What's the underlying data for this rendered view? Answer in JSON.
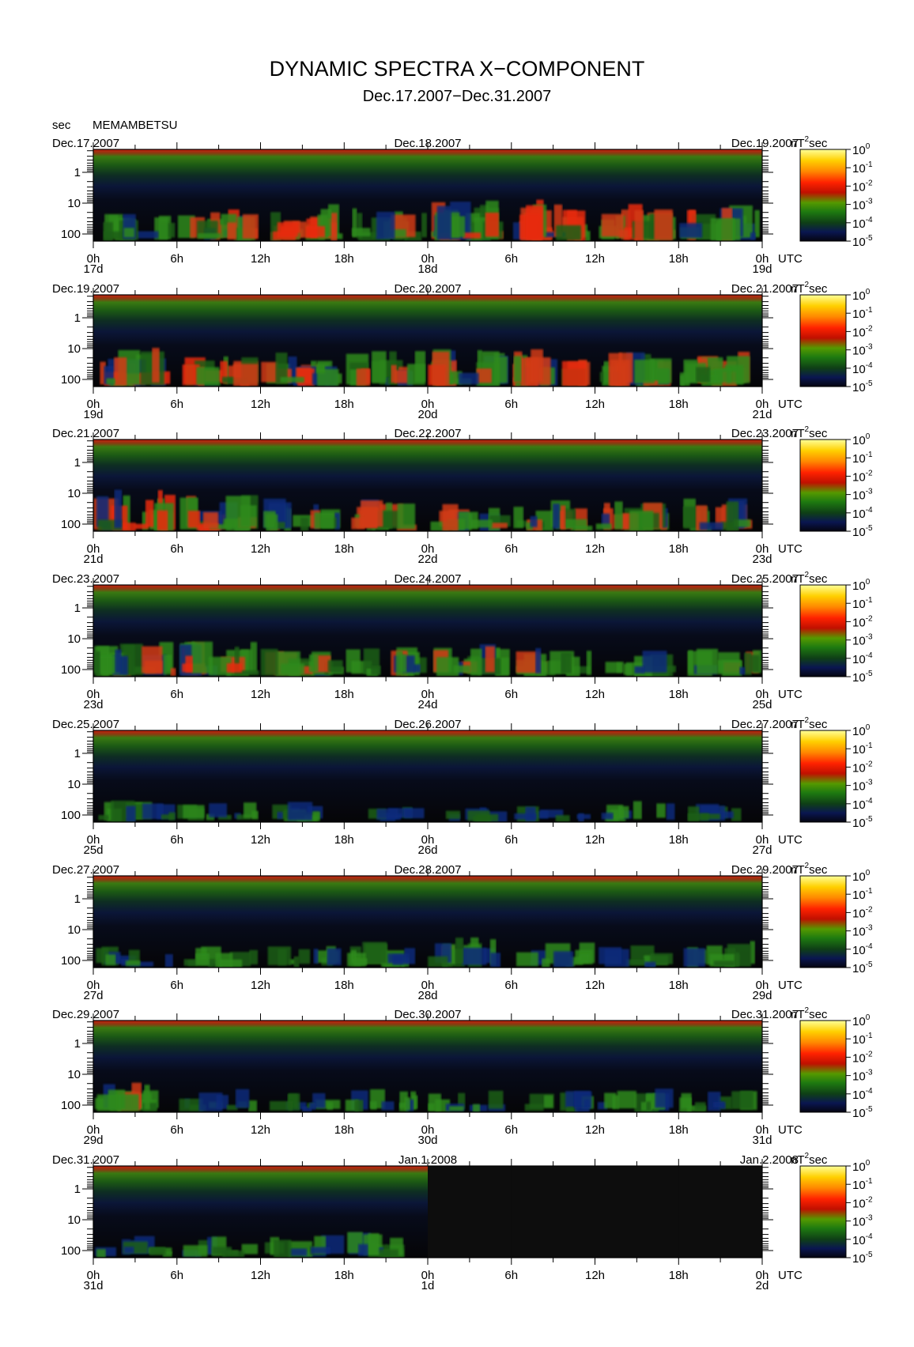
{
  "header": {
    "title": "DYNAMIC SPECTRA X−COMPONENT",
    "subtitle": "Dec.17.2007−Dec.31.2007",
    "y_unit": "sec",
    "station": "MEMAMBETSU"
  },
  "colorbar": {
    "unit_base": "nT",
    "unit_exp": "2",
    "unit_suffix": "sec",
    "ticks": [
      {
        "exp": "0",
        "value": 1
      },
      {
        "exp": "-1",
        "value": 0.1
      },
      {
        "exp": "-2",
        "value": 0.01
      },
      {
        "exp": "-3",
        "value": 0.001
      },
      {
        "exp": "-4",
        "value": 0.0001
      },
      {
        "exp": "-5",
        "value": 1e-05
      }
    ],
    "colors": [
      "#ffff99",
      "#ffd000",
      "#ff8800",
      "#ff2200",
      "#cc1100",
      "#559900",
      "#1e7a10",
      "#0f3f16",
      "#0a1650",
      "#050510"
    ]
  },
  "chart_data": {
    "type": "heatmap",
    "title": "DYNAMIC SPECTRA X−COMPONENT",
    "subtitle": "Dec.17.2007−Dec.31.2007",
    "ylabel": "sec",
    "y_scale": "log",
    "y_ticks": [
      "1",
      "10",
      "100"
    ],
    "x_tick_labels": [
      "0h",
      "6h",
      "12h",
      "18h",
      "0h",
      "6h",
      "12h",
      "18h",
      "0h"
    ],
    "x_tz_label": "UTC",
    "colorbar_unit": "nT²sec",
    "panels": [
      {
        "left_date": "Dec.17.2007",
        "mid_date": "Dec.18.2007",
        "right_date": "Dec.19.2007",
        "days": [
          "17d",
          "18d",
          "19d"
        ],
        "activity": [
          5,
          7,
          8,
          6,
          9,
          9,
          7,
          8
        ]
      },
      {
        "left_date": "Dec.19.2007",
        "mid_date": "Dec.20.2007",
        "right_date": "Dec.21.2007",
        "days": [
          "19d",
          "20d",
          "21d"
        ],
        "activity": [
          8,
          7,
          7,
          7,
          8,
          7,
          7,
          7
        ]
      },
      {
        "left_date": "Dec.21.2007",
        "mid_date": "Dec.22.2007",
        "right_date": "Dec.23.2007",
        "days": [
          "21d",
          "22d",
          "23d"
        ],
        "activity": [
          9,
          8,
          6,
          6,
          6,
          6,
          6,
          6
        ]
      },
      {
        "left_date": "Dec.23.2007",
        "mid_date": "Dec.24.2007",
        "right_date": "Dec.25.2007",
        "days": [
          "23d",
          "24d",
          "25d"
        ],
        "activity": [
          7,
          7,
          6,
          5,
          6,
          5,
          4,
          5
        ]
      },
      {
        "left_date": "Dec.25.2007",
        "mid_date": "Dec.26.2007",
        "right_date": "Dec.27.2007",
        "days": [
          "25d",
          "26d",
          "27d"
        ],
        "activity": [
          4,
          3,
          3,
          2,
          2,
          2,
          3,
          2
        ]
      },
      {
        "left_date": "Dec.27.2007",
        "mid_date": "Dec.28.2007",
        "right_date": "Dec.29.2007",
        "days": [
          "27d",
          "28d",
          "29d"
        ],
        "activity": [
          3,
          3,
          3,
          4,
          5,
          4,
          3,
          4
        ]
      },
      {
        "left_date": "Dec.29.2007",
        "mid_date": "Dec.30.2007",
        "right_date": "Dec.31.2007",
        "days": [
          "29d",
          "30d",
          "31d"
        ],
        "activity": [
          5,
          3,
          3,
          4,
          3,
          3,
          4,
          3
        ]
      },
      {
        "left_date": "Dec.31.2007",
        "mid_date": "Jan.1.2008",
        "right_date": "Jan.2.2008",
        "days": [
          "31d",
          "1d",
          "2d"
        ],
        "activity": [
          3,
          3,
          3,
          4,
          0,
          0,
          0,
          0
        ]
      }
    ]
  }
}
